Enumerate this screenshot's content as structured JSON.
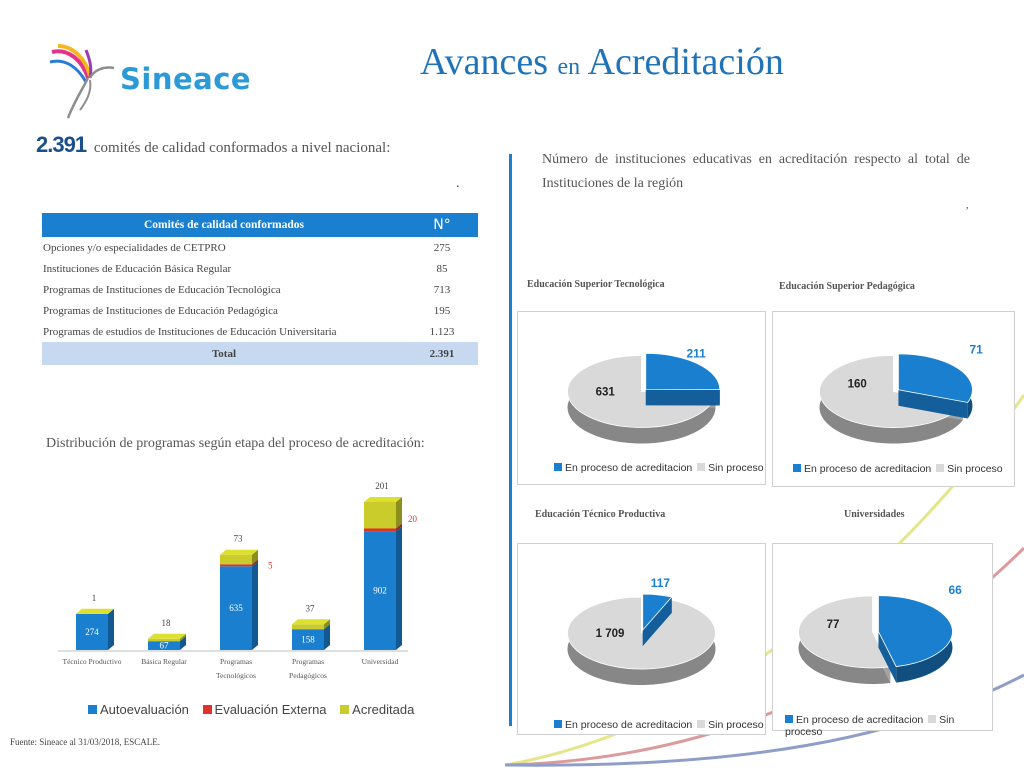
{
  "logo": {
    "brand": "Sineace"
  },
  "title": {
    "part1": "Avances",
    "part2": "en",
    "part3": "Acreditación"
  },
  "summary": {
    "count": "2.391",
    "text": "comités de calidad conformados a nivel nacional:"
  },
  "dot1": ".",
  "table": {
    "header_name": "Comités de calidad conformados",
    "header_n": "N°",
    "rows": [
      {
        "name": "Opciones y/o especialidades de CETPRO",
        "n": "275"
      },
      {
        "name": "Instituciones de Educación Básica Regular",
        "n": "85"
      },
      {
        "name": "Programas de Instituciones de Educación Tecnológica",
        "n": "713"
      },
      {
        "name": "Programas de Instituciones de Educación Pedagógica",
        "n": "195"
      },
      {
        "name": "Programas de estudios de Instituciones de Educación Universitaria",
        "n": "1.123"
      }
    ],
    "total_label": "Total",
    "total_value": "2.391"
  },
  "dist_title": "Distribución de programas según etapa del proceso de acreditación:",
  "intro": "Número de instituciones educativas en acreditación respecto al total de Instituciones de la región",
  "dot2": ",",
  "footer": "Fuente: Sineace al 31/03/2018, ESCALE.",
  "colors": {
    "blue": "#1b7fcf",
    "red": "#e0312c",
    "olive": "#c9cc2a",
    "grey": "#d9d9d9"
  },
  "chart_data": [
    {
      "type": "bar",
      "stacked": true,
      "categories": [
        "Técnico Productivo",
        "Básica Regular",
        "Programas Tecnológicos",
        "Programas Pedagógicos",
        "Universidad"
      ],
      "series": [
        {
          "name": "Autoevaluación",
          "values": [
            274,
            67,
            635,
            158,
            902
          ]
        },
        {
          "name": "Evaluación Externa",
          "values": [
            0,
            0,
            5,
            0,
            20
          ]
        },
        {
          "name": "Acreditada",
          "values": [
            1,
            18,
            73,
            37,
            201
          ]
        }
      ],
      "labels": {
        "auto": [
          "274",
          "67",
          "635",
          "158",
          "902"
        ],
        "ext": [
          "",
          "",
          "5",
          "",
          "20"
        ],
        "acred": [
          "1",
          "18",
          "73",
          "37",
          "201"
        ]
      }
    },
    {
      "type": "pie",
      "title": "Educación Superior Tecnológica",
      "labels": [
        "En proceso de acreditacion",
        "Sin proceso"
      ],
      "values": [
        211,
        631
      ],
      "value_labels": [
        "211",
        "631"
      ]
    },
    {
      "type": "pie",
      "title": "Educación Superior Pedagógica",
      "labels": [
        "En proceso de acreditacion",
        "Sin proceso"
      ],
      "values": [
        71,
        160
      ],
      "value_labels": [
        "71",
        "160"
      ]
    },
    {
      "type": "pie",
      "title": "Educación Técnico Productiva",
      "labels": [
        "En proceso de acreditacion",
        "Sin proceso"
      ],
      "values": [
        117,
        1709
      ],
      "value_labels": [
        "117",
        "1 709"
      ]
    },
    {
      "type": "pie",
      "title": "Universidades",
      "labels": [
        "En proceso de acreditacion",
        "Sin proceso"
      ],
      "values": [
        66,
        77
      ],
      "value_labels": [
        "66",
        "77"
      ]
    }
  ]
}
